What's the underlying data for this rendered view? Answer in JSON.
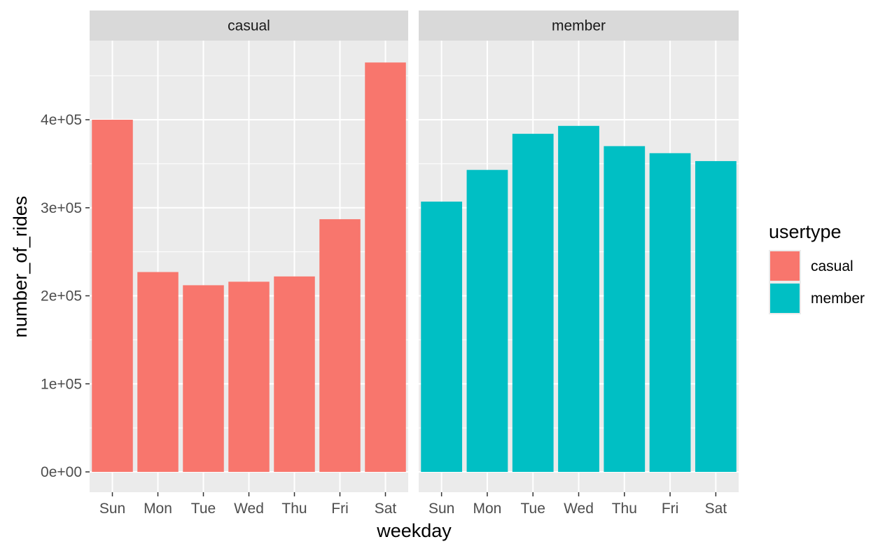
{
  "colors": {
    "casual": "#F8766D",
    "member": "#00BFC4",
    "panel_background": "#EBEBEB",
    "strip_background": "#D9D9D9",
    "grid": "#FFFFFF"
  },
  "chart_data": {
    "type": "bar",
    "facet_by": "usertype",
    "categories": [
      "Sun",
      "Mon",
      "Tue",
      "Wed",
      "Thu",
      "Fri",
      "Sat"
    ],
    "xlabel": "weekday",
    "ylabel": "number_of_rides",
    "ylim": [
      0,
      490000
    ],
    "yticks": [
      0,
      100000,
      200000,
      300000,
      400000
    ],
    "ytick_labels": [
      "0e+00",
      "1e+05",
      "2e+05",
      "3e+05",
      "4e+05"
    ],
    "grid": true,
    "legend": {
      "title": "usertype",
      "placement": "right",
      "entries": [
        "casual",
        "member"
      ]
    },
    "panels": [
      {
        "strip": "casual",
        "series": [
          {
            "name": "casual",
            "values": [
              400000,
              227000,
              212000,
              216000,
              222000,
              287000,
              465000
            ]
          }
        ]
      },
      {
        "strip": "member",
        "series": [
          {
            "name": "member",
            "values": [
              307000,
              343000,
              384000,
              393000,
              370000,
              362000,
              353000
            ]
          }
        ]
      }
    ]
  }
}
